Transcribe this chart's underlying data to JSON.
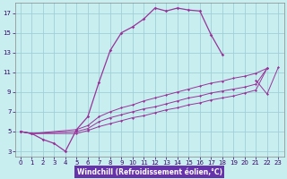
{
  "xlabel": "Windchill (Refroidissement éolien,°C)",
  "bg_color": "#c8eef0",
  "grid_color": "#a0d0d8",
  "line_color": "#993399",
  "xlabel_bg": "#6633aa",
  "xlabel_color": "#ffffff",
  "xmin": -0.5,
  "xmax": 23.5,
  "ymin": 2.5,
  "ymax": 18.0,
  "series": [
    {
      "x": [
        0,
        1,
        2,
        3,
        4,
        5,
        6,
        7,
        8,
        9,
        10,
        11,
        12,
        13,
        14,
        15,
        16,
        17,
        18,
        19,
        20
      ],
      "y": [
        5,
        4.8,
        4.2,
        3.8,
        3.0,
        5.2,
        6.5,
        10.0,
        13.2,
        15.0,
        15.6,
        16.4,
        17.5,
        17.2,
        17.5,
        17.3,
        17.2,
        14.8,
        12.8,
        null,
        null
      ]
    },
    {
      "x": [
        0,
        1,
        5,
        6,
        7,
        8,
        9,
        10,
        11,
        12,
        13,
        14,
        15,
        16,
        17,
        18,
        19,
        20,
        21,
        22,
        23
      ],
      "y": [
        5,
        4.8,
        5.2,
        5.6,
        6.5,
        7.0,
        7.4,
        7.7,
        8.1,
        8.4,
        8.7,
        9.0,
        9.3,
        9.6,
        9.9,
        10.1,
        10.4,
        10.6,
        10.9,
        11.4,
        null
      ]
    },
    {
      "x": [
        0,
        1,
        5,
        6,
        7,
        8,
        9,
        10,
        11,
        12,
        13,
        14,
        15,
        16,
        17,
        18,
        19,
        20,
        21,
        22,
        23
      ],
      "y": [
        5,
        4.8,
        5.0,
        5.3,
        6.0,
        6.4,
        6.7,
        7.0,
        7.3,
        7.5,
        7.8,
        8.1,
        8.4,
        8.6,
        8.9,
        9.1,
        9.3,
        9.5,
        9.8,
        11.4,
        null
      ]
    },
    {
      "x": [
        0,
        1,
        5,
        6,
        7,
        8,
        9,
        10,
        11,
        12,
        13,
        14,
        15,
        16,
        17,
        18,
        19,
        20,
        21,
        22,
        23
      ],
      "y": [
        5,
        4.8,
        4.8,
        5.1,
        5.5,
        5.8,
        6.1,
        6.4,
        6.6,
        6.9,
        7.2,
        7.4,
        7.7,
        7.9,
        8.2,
        8.4,
        8.6,
        8.9,
        9.2,
        11.4,
        null
      ]
    },
    {
      "x": [
        20,
        21,
        22,
        23
      ],
      "y": [
        null,
        10.2,
        8.8,
        11.5
      ]
    }
  ],
  "yticks": [
    3,
    5,
    7,
    9,
    11,
    13,
    15,
    17
  ],
  "xticks": [
    0,
    1,
    2,
    3,
    4,
    5,
    6,
    7,
    8,
    9,
    10,
    11,
    12,
    13,
    14,
    15,
    16,
    17,
    18,
    19,
    20,
    21,
    22,
    23
  ]
}
